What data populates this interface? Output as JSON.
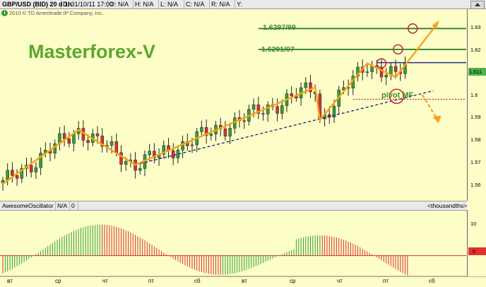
{
  "header": {
    "symbol": "GBP/USD (BID) 20 d 1h",
    "date": "D: 31/10/11 17:00",
    "open": "O: N/A",
    "high": "H: N/A",
    "low": "L: N/A",
    "close": "C: N/A",
    "range": "R: N/A",
    "y": "Y:"
  },
  "copyright": "2010 © TD Ameritrade IP Company, Inc.",
  "brand": "Masterforex-V",
  "annotations": {
    "level_top": "1.6297/99",
    "level_mid": "1.6201/07",
    "pivot": "pivot MF"
  },
  "last_price": "1.611",
  "oscillator": {
    "name": "AwesomeOscillator",
    "value": "N/A",
    "zero": "0",
    "units": "<thousandths>",
    "tick_10": "10",
    "axis_zero": "0"
  },
  "colors": {
    "background": "#fdfdc8",
    "pattern": "#f5a31e",
    "trend": "#1a1a8a",
    "level": "#1f7a1f",
    "resistance": "#2a2a8a",
    "pivot": "#c03030",
    "osc_up": "#33a033",
    "osc_down": "#d83030"
  },
  "chart_data": {
    "type": "candlestick",
    "ylim": [
      1.558,
      1.638
    ],
    "yticks": [
      "1.63",
      "1.62",
      "1.61",
      "1.6",
      "1.59",
      "1.58",
      "1.57",
      "1.56"
    ],
    "xticks": [
      "вт",
      "ср",
      "чт",
      "пт",
      "сб",
      "вт",
      "ср",
      "чт",
      "пт",
      "сб"
    ],
    "key_points": [
      {
        "bar": 0,
        "price": 1.5605
      },
      {
        "bar": 16,
        "price": 1.5845
      },
      {
        "bar": 28,
        "price": 1.569
      },
      {
        "bar": 66,
        "price": 1.6035
      },
      {
        "bar": 67,
        "price": 1.589
      },
      {
        "bar": 77,
        "price": 1.6142
      },
      {
        "bar": 83,
        "price": 1.608
      },
      {
        "bar": 91,
        "price": 1.6297
      }
    ],
    "levels": [
      {
        "label": "1.6297/99",
        "value": 1.6297
      },
      {
        "label": "1.6201/07",
        "value": 1.6204
      },
      {
        "label": "",
        "value": 1.6145
      },
      {
        "label": "pivot MF",
        "value": 1.5982
      }
    ],
    "trendline": {
      "from": {
        "bar": 28,
        "price": 1.569
      },
      "to": {
        "bar": 91,
        "price": 1.602
      }
    },
    "projections": [
      {
        "to": {
          "bar": 91,
          "price": 1.6297
        }
      },
      {
        "to": {
          "bar": 91,
          "price": 1.59
        }
      }
    ],
    "oscillator_series": {
      "name": "AwesomeOscillator",
      "ylim": [
        -6,
        14
      ]
    }
  }
}
